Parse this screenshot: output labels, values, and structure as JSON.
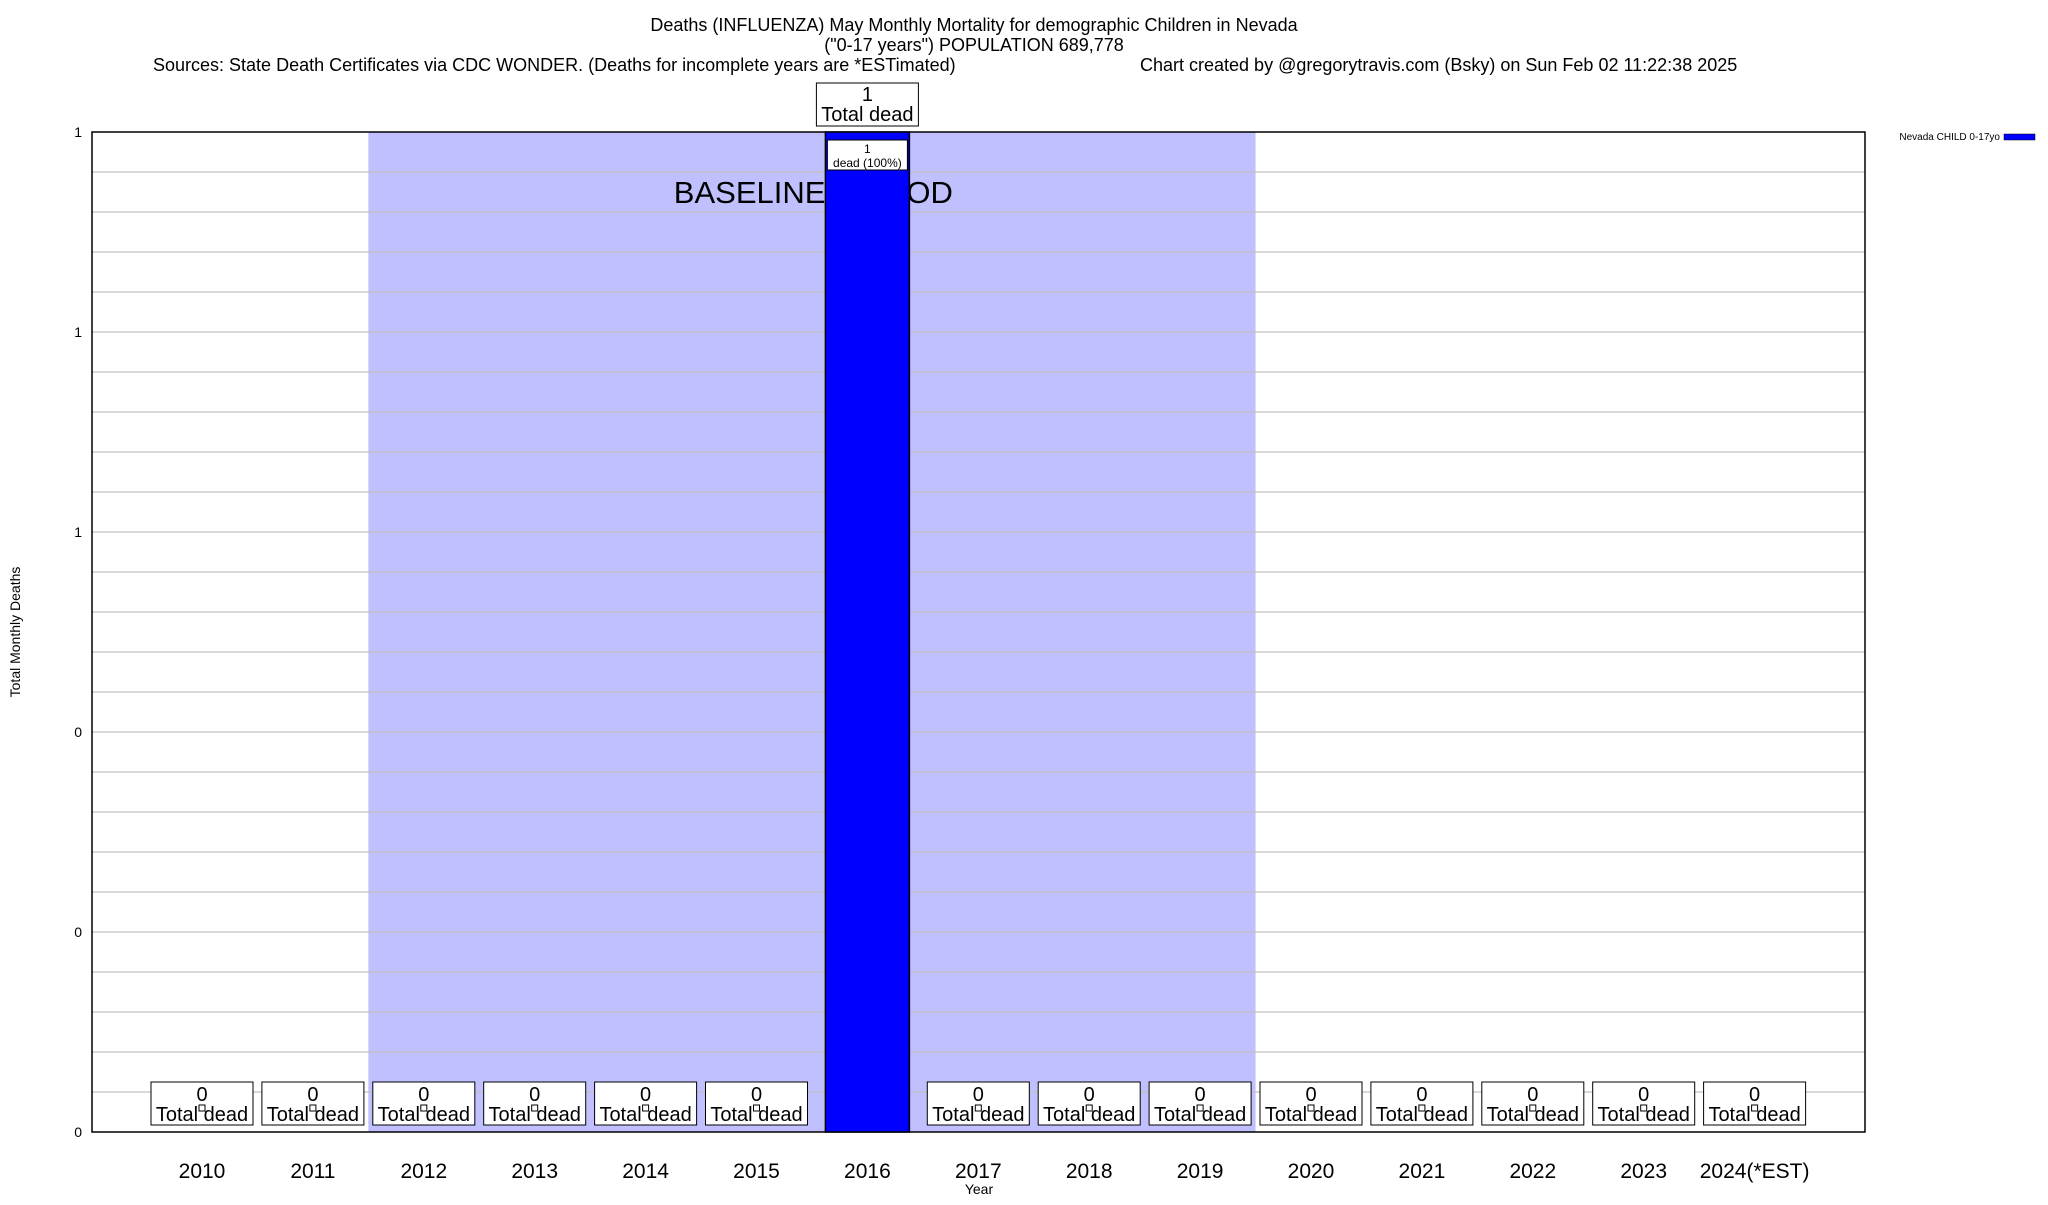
{
  "chart_data": {
    "type": "bar",
    "title": "Deaths (INFLUENZA) May Monthly Mortality for demographic Children in Nevada",
    "subtitle": "(\"0-17 years\") POPULATION 689,778",
    "sources": "Sources: State Death Certificates via CDC WONDER. (Deaths for incomplete years are *ESTimated)",
    "credit": "Chart created by @gregorytravis.com (Bsky) on Sun Feb 02 11:22:38 2025",
    "xlabel": "Year",
    "ylabel": "Total Monthly Deaths",
    "ylim": [
      0,
      1
    ],
    "y_ticks": [
      0,
      0.2,
      0.4,
      0.6,
      0.8,
      1
    ],
    "y_tick_labels": [
      "0",
      "0",
      "0",
      "1",
      "1",
      "1"
    ],
    "grid": true,
    "legend_position": "top-right",
    "categories": [
      "2010",
      "2011",
      "2012",
      "2013",
      "2014",
      "2015",
      "2016",
      "2017",
      "2018",
      "2019",
      "2020",
      "2021",
      "2022",
      "2023",
      "2024(*EST)"
    ],
    "series": [
      {
        "name": "Nevada CHILD 0-17yo",
        "color": "#0000ff",
        "values": [
          0,
          0,
          0,
          0,
          0,
          0,
          1,
          0,
          0,
          0,
          0,
          0,
          0,
          0,
          0
        ]
      }
    ],
    "total_label": "Total dead",
    "bar_inner_label": "dead (100%)",
    "baseline": {
      "label": "BASELINE PERIOD",
      "from": "2012",
      "to": "2019",
      "color": "#c0c0ff"
    }
  }
}
